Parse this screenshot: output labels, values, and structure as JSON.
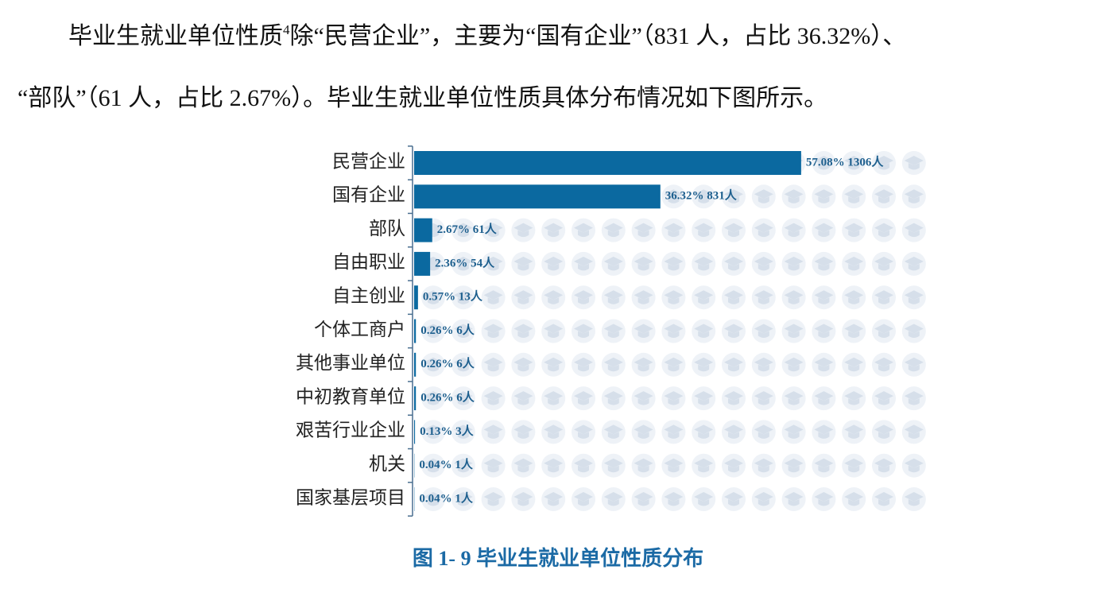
{
  "body": {
    "line1_before": "毕业生就业单位性质",
    "footnote_mark": "4",
    "line1_after": "除“民营企业”，主要为“国有企业”（831 人，占比 36.32%）、",
    "line2": "“部队”（61 人，占比 2.67%）。毕业生就业单位性质具体分布情况如下图所示。"
  },
  "chart_data": {
    "type": "bar",
    "orientation": "horizontal",
    "color": "#0b69a0",
    "categories": [
      "民营企业",
      "国有企业",
      "部队",
      "自由职业",
      "自主创业",
      "个体工商户",
      "其他事业单位",
      "中初教育单位",
      "艰苦行业企业",
      "机关",
      "国家基层项目"
    ],
    "values": [
      57.08,
      36.32,
      2.67,
      2.36,
      0.57,
      0.26,
      0.26,
      0.26,
      0.13,
      0.04,
      0.04
    ],
    "value_labels": [
      "57.08% 1306人",
      "36.32% 831人",
      "2.67% 61人",
      "2.36% 54人",
      "0.57% 13人",
      "0.26% 6人",
      "0.26% 6人",
      "0.26% 6人",
      "0.13% 3人",
      "0.04% 1人",
      "0.04% 1人"
    ],
    "caption": "图 1- 9  毕业生就业单位性质分布"
  }
}
